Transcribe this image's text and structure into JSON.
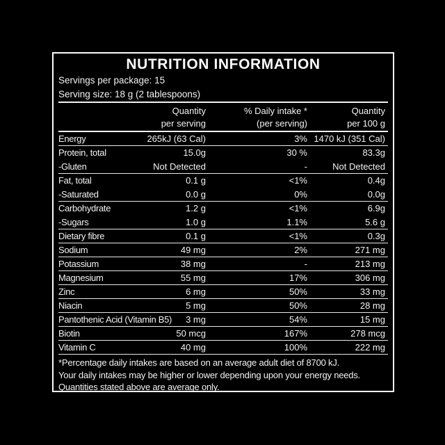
{
  "panel": {
    "title": "NUTRITION INFORMATION",
    "servings_per_package": "Servings per package: 15",
    "serving_size": "Serving size: 18 g (2 tablespoons)",
    "columns": {
      "qty_line1": "Quantity",
      "qty_line2": "per serving",
      "daily_line1": "% Daily intake *",
      "daily_line2": "(per serving)",
      "per100_line1": "Quantity",
      "per100_line2": "per 100 g"
    },
    "rows": [
      {
        "name": "Energy",
        "qty": "265kJ (63 Cal)",
        "daily": "3%",
        "per100": "1470 kJ (351 Cal)",
        "underline": true
      },
      {
        "name": "Protein, total",
        "qty": "15.0g",
        "daily": "30 %",
        "per100": "83.3g",
        "underline": false
      },
      {
        "name": "-Gluten",
        "qty": "Not Detected",
        "daily": "-",
        "per100": "Not Detected",
        "underline": true
      },
      {
        "name": "Fat, total",
        "qty": "0.1 g",
        "daily": "<1%",
        "per100": "0.4g",
        "underline": false
      },
      {
        "name": "-Saturated",
        "qty": "0.0 g",
        "daily": "0%",
        "per100": "0.0g",
        "underline": true
      },
      {
        "name": "Carbohydrate",
        "qty": "1.2 g",
        "daily": "<1%",
        "per100": "6.9g",
        "underline": false
      },
      {
        "name": "-Sugars",
        "qty": "1.0 g",
        "daily": "1.1%",
        "per100": "5.6 g",
        "underline": true
      },
      {
        "name": "Dietary fibre",
        "qty": "0.1 g",
        "daily": "<1%",
        "per100": "0.3g",
        "underline": true
      },
      {
        "name": "Sodium",
        "qty": "49 mg",
        "daily": "2%",
        "per100": "271 mg",
        "underline": true
      },
      {
        "name": "Potassium",
        "qty": "38 mg",
        "daily": "-",
        "per100": "213 mg",
        "underline": true
      },
      {
        "name": "Magnesium",
        "qty": "55 mg",
        "daily": "17%",
        "per100": "306 mg",
        "underline": true
      },
      {
        "name": "Zinc",
        "qty": "6 mg",
        "daily": "50%",
        "per100": "33 mg",
        "underline": true
      },
      {
        "name": "Niacin",
        "qty": "5 mg",
        "daily": "50%",
        "per100": "28 mg",
        "underline": true
      },
      {
        "name": "Pantothenic Acid (Vitamin B5)",
        "qty": "3 mg",
        "daily": "54%",
        "per100": "15 mg",
        "underline": true
      },
      {
        "name": "Biotin",
        "qty": "50 mcg",
        "daily": "167%",
        "per100": "278 mcg",
        "underline": true
      },
      {
        "name": "Vitamin C",
        "qty": "40 mg",
        "daily": "100%",
        "per100": "222 mg",
        "underline": true
      }
    ],
    "footnotes": [
      "*Percentage daily intakes are based on an average adult diet of 8700 kJ.",
      "Your daily intakes may be higher or lower depending upon your energy needs.",
      "Quantities stated above are average only."
    ],
    "colors": {
      "background": "#000000",
      "text": "#f2f2f2",
      "line": "#f2f2f2"
    }
  }
}
